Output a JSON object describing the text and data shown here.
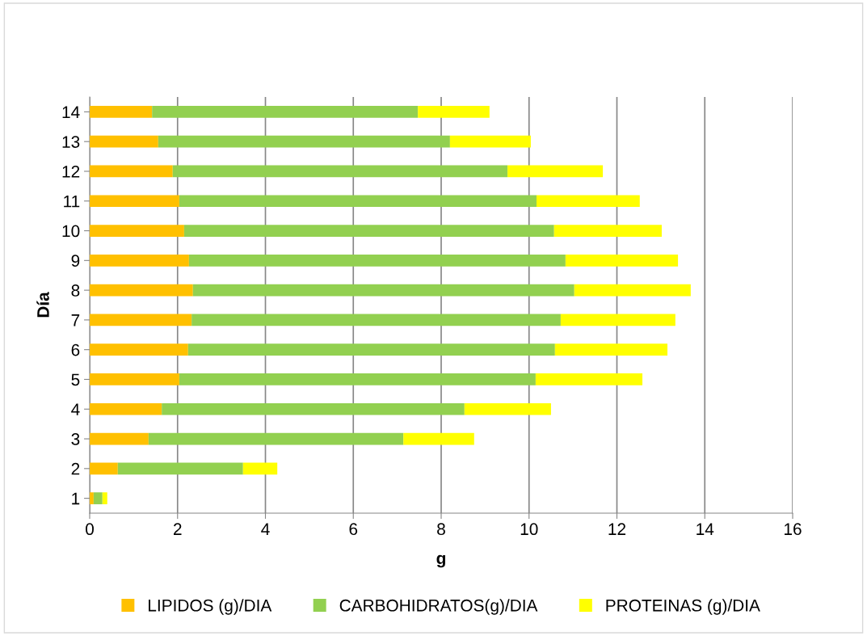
{
  "chart_data": {
    "type": "bar",
    "orientation": "horizontal",
    "stacked": true,
    "xlabel": "g",
    "ylabel": "Día",
    "categories": [
      "14",
      "13",
      "12",
      "11",
      "10",
      "9",
      "8",
      "7",
      "6",
      "5",
      "4",
      "3",
      "2",
      "1"
    ],
    "series": [
      {
        "name": "LIPIDOS (g)/DIA",
        "color": "#ffc000",
        "values": [
          1.42,
          1.56,
          1.89,
          2.04,
          2.15,
          2.26,
          2.35,
          2.32,
          2.24,
          2.04,
          1.64,
          1.34,
          0.64,
          0.09
        ]
      },
      {
        "name": "CARBOHIDRATOS(g)/DIA",
        "color": "#92d050",
        "values": [
          6.05,
          6.64,
          7.62,
          8.13,
          8.42,
          8.57,
          8.68,
          8.4,
          8.35,
          8.11,
          6.89,
          5.8,
          2.85,
          0.2
        ]
      },
      {
        "name": "PROTEINAS (g)/DIA",
        "color": "#ffff00",
        "values": [
          1.63,
          1.84,
          2.17,
          2.35,
          2.45,
          2.56,
          2.65,
          2.61,
          2.56,
          2.43,
          1.97,
          1.61,
          0.78,
          0.11
        ]
      }
    ],
    "xlim": [
      0,
      16
    ],
    "xticks": [
      0,
      2,
      4,
      6,
      8,
      10,
      12,
      14,
      16
    ],
    "grid": "x",
    "legend": "bottom"
  }
}
